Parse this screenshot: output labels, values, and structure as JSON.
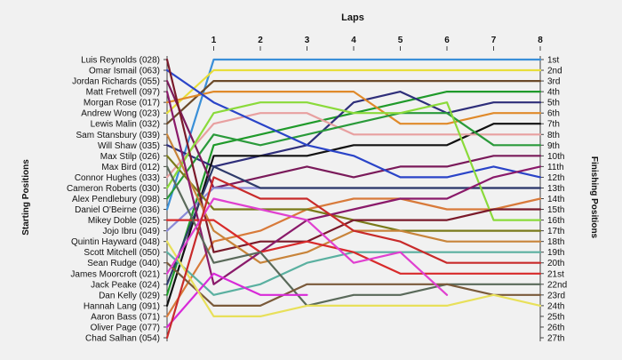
{
  "chart_data": {
    "type": "line",
    "title": "Laps",
    "ylabel_left": "Starting Positions",
    "ylabel_right": "Finishing Positions",
    "x": [
      0,
      1,
      2,
      3,
      4,
      5,
      6,
      7,
      8
    ],
    "x_tick_labels": [
      "1",
      "2",
      "3",
      "4",
      "5",
      "6",
      "7",
      "8"
    ],
    "position_labels": [
      "1st",
      "2nd",
      "3rd",
      "4th",
      "5th",
      "6th",
      "7th",
      "8th",
      "9th",
      "10th",
      "11th",
      "12th",
      "13th",
      "14th",
      "15th",
      "16th",
      "17th",
      "18th",
      "19th",
      "20th",
      "21st",
      "22nd",
      "23rd",
      "24th",
      "25th",
      "26th",
      "27th"
    ],
    "drivers": [
      "Luis Reynolds (028)",
      "Omar Ismail (063)",
      "Jordan Richards (055)",
      "Matt Fretwell (097)",
      "Morgan Rose (017)",
      "Andrew Wong (023)",
      "Lewis Malin (032)",
      "Sam Stansbury (039)",
      "Will Shaw (035)",
      "Max Stilp (026)",
      "Max Bird (012)",
      "Connor Hughes (033)",
      "Cameron Roberts (030)",
      "Alex Pendlebury (098)",
      "Daniel O'Beirne (036)",
      "Mikey Doble (025)",
      "Jojo Ibru (049)",
      "Quintin Hayward (048)",
      "Scott Mitchell (050)",
      "Sean Rudge (040)",
      "James Moorcroft (021)",
      "Jack Peake (024)",
      "Dan Kelly (029)",
      "Hannah Lang (091)",
      "Aaron Bass (071)",
      "Oliver Page (077)",
      "Chad Salhan (054)"
    ],
    "y_range": [
      1,
      27
    ],
    "grid": false,
    "series": [
      {
        "color": "#3a8fd8",
        "values": [
          15,
          1,
          1,
          1,
          1,
          1,
          1,
          1,
          1
        ]
      },
      {
        "color": "#e8de3a",
        "values": [
          6,
          2,
          2,
          2,
          2,
          2,
          2,
          2,
          2
        ]
      },
      {
        "color": "#6b4a2a",
        "values": [
          7,
          3,
          3,
          3,
          3,
          3,
          3,
          3,
          3
        ]
      },
      {
        "color": "#1f9a2a",
        "values": [
          23,
          9,
          8,
          7,
          6,
          5,
          4,
          4,
          4
        ]
      },
      {
        "color": "#2e2e7a",
        "values": [
          9,
          11,
          10,
          9,
          5,
          4,
          6,
          5,
          5
        ]
      },
      {
        "color": "#e08a2a",
        "values": [
          5,
          4,
          4,
          4,
          4,
          7,
          7,
          6,
          6
        ]
      },
      {
        "color": "#111111",
        "values": [
          24,
          10,
          10,
          10,
          9,
          9,
          9,
          7,
          7
        ]
      },
      {
        "color": "#e8a0a0",
        "values": [
          12,
          7,
          6,
          6,
          8,
          8,
          8,
          8,
          8
        ]
      },
      {
        "color": "#2a9a3a",
        "values": [
          14,
          8,
          9,
          8,
          7,
          6,
          6,
          9,
          9
        ]
      },
      {
        "color": "#7a1a5a",
        "values": [
          3,
          13,
          12,
          11,
          12,
          11,
          11,
          10,
          10
        ]
      },
      {
        "color": "#2a44c8",
        "values": [
          2,
          5,
          7,
          9,
          10,
          12,
          12,
          11,
          12
        ]
      },
      {
        "color": "#8a8ad8",
        "values": [
          17,
          13,
          13,
          13,
          13,
          13,
          13,
          13,
          13
        ]
      },
      {
        "color": "#2e3a6a",
        "values": [
          22,
          11,
          13,
          13,
          13,
          13,
          13,
          13,
          13
        ]
      },
      {
        "color": "#d87a3a",
        "values": [
          25,
          18,
          17,
          15,
          14,
          14,
          15,
          15,
          14
        ]
      },
      {
        "color": "#7a7a1a",
        "values": [
          10,
          15,
          15,
          15,
          16,
          17,
          17,
          17,
          17
        ]
      },
      {
        "color": "#8ada3a",
        "values": [
          13,
          6,
          5,
          5,
          6,
          6,
          5,
          16,
          16
        ]
      },
      {
        "color": "#7a1a2a",
        "values": [
          1,
          19,
          18,
          18,
          16,
          16,
          16,
          15,
          15
        ]
      },
      {
        "color": "#c8843a",
        "values": [
          8,
          17,
          20,
          19,
          17,
          17,
          18,
          18,
          18
        ]
      },
      {
        "color": "#8a1a6a",
        "values": [
          4,
          22,
          19,
          16,
          15,
          14,
          14,
          12,
          11
        ]
      },
      {
        "color": "#5ab0a0",
        "values": [
          19,
          23,
          22,
          20,
          19,
          19,
          19,
          19,
          19
        ]
      },
      {
        "color": "#d82a2a",
        "values": [
          16,
          16,
          19,
          18,
          19,
          21,
          21,
          21,
          21
        ]
      },
      {
        "color": "#5a6a5a",
        "values": [
          11,
          20,
          19,
          24,
          23,
          23,
          22,
          22,
          22
        ]
      },
      {
        "color": "#7a5a3a",
        "values": [
          20,
          24,
          24,
          22,
          22,
          22,
          22,
          23,
          23
        ]
      },
      {
        "color": "#d82ad8",
        "values": [
          26,
          21,
          23,
          23,
          null,
          null,
          null,
          null,
          null
        ]
      },
      {
        "color": "#e8e05a",
        "values": [
          18,
          25,
          25,
          24,
          24,
          24,
          24,
          23,
          24
        ]
      },
      {
        "color": "#e040d0",
        "values": [
          21,
          14,
          15,
          16,
          20,
          19,
          23,
          null,
          null
        ]
      },
      {
        "color": "#c82a2a",
        "values": [
          27,
          12,
          14,
          14,
          17,
          18,
          20,
          20,
          20
        ]
      }
    ]
  }
}
